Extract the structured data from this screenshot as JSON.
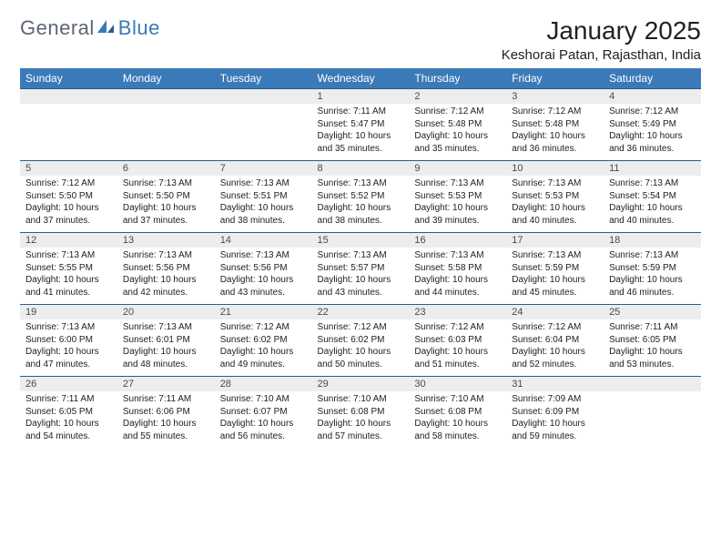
{
  "logo": {
    "word1": "General",
    "word2": "Blue"
  },
  "header": {
    "title": "January 2025",
    "location": "Keshorai Patan, Rajasthan, India"
  },
  "colors": {
    "brand_blue": "#3a7ab8",
    "row_divider": "#2a5d8a",
    "daynum_bg": "#eceded",
    "text": "#212121",
    "logo_gray": "#5c6670"
  },
  "fonts": {
    "title_size_pt": 21,
    "location_size_pt": 11,
    "header_cell_pt": 9,
    "daynum_pt": 8,
    "body_pt": 7.5
  },
  "calendar": {
    "day_headers": [
      "Sunday",
      "Monday",
      "Tuesday",
      "Wednesday",
      "Thursday",
      "Friday",
      "Saturday"
    ],
    "weeks": [
      [
        null,
        null,
        null,
        {
          "n": "1",
          "sunrise": "7:11 AM",
          "sunset": "5:47 PM",
          "daylight": "10 hours and 35 minutes."
        },
        {
          "n": "2",
          "sunrise": "7:12 AM",
          "sunset": "5:48 PM",
          "daylight": "10 hours and 35 minutes."
        },
        {
          "n": "3",
          "sunrise": "7:12 AM",
          "sunset": "5:48 PM",
          "daylight": "10 hours and 36 minutes."
        },
        {
          "n": "4",
          "sunrise": "7:12 AM",
          "sunset": "5:49 PM",
          "daylight": "10 hours and 36 minutes."
        }
      ],
      [
        {
          "n": "5",
          "sunrise": "7:12 AM",
          "sunset": "5:50 PM",
          "daylight": "10 hours and 37 minutes."
        },
        {
          "n": "6",
          "sunrise": "7:13 AM",
          "sunset": "5:50 PM",
          "daylight": "10 hours and 37 minutes."
        },
        {
          "n": "7",
          "sunrise": "7:13 AM",
          "sunset": "5:51 PM",
          "daylight": "10 hours and 38 minutes."
        },
        {
          "n": "8",
          "sunrise": "7:13 AM",
          "sunset": "5:52 PM",
          "daylight": "10 hours and 38 minutes."
        },
        {
          "n": "9",
          "sunrise": "7:13 AM",
          "sunset": "5:53 PM",
          "daylight": "10 hours and 39 minutes."
        },
        {
          "n": "10",
          "sunrise": "7:13 AM",
          "sunset": "5:53 PM",
          "daylight": "10 hours and 40 minutes."
        },
        {
          "n": "11",
          "sunrise": "7:13 AM",
          "sunset": "5:54 PM",
          "daylight": "10 hours and 40 minutes."
        }
      ],
      [
        {
          "n": "12",
          "sunrise": "7:13 AM",
          "sunset": "5:55 PM",
          "daylight": "10 hours and 41 minutes."
        },
        {
          "n": "13",
          "sunrise": "7:13 AM",
          "sunset": "5:56 PM",
          "daylight": "10 hours and 42 minutes."
        },
        {
          "n": "14",
          "sunrise": "7:13 AM",
          "sunset": "5:56 PM",
          "daylight": "10 hours and 43 minutes."
        },
        {
          "n": "15",
          "sunrise": "7:13 AM",
          "sunset": "5:57 PM",
          "daylight": "10 hours and 43 minutes."
        },
        {
          "n": "16",
          "sunrise": "7:13 AM",
          "sunset": "5:58 PM",
          "daylight": "10 hours and 44 minutes."
        },
        {
          "n": "17",
          "sunrise": "7:13 AM",
          "sunset": "5:59 PM",
          "daylight": "10 hours and 45 minutes."
        },
        {
          "n": "18",
          "sunrise": "7:13 AM",
          "sunset": "5:59 PM",
          "daylight": "10 hours and 46 minutes."
        }
      ],
      [
        {
          "n": "19",
          "sunrise": "7:13 AM",
          "sunset": "6:00 PM",
          "daylight": "10 hours and 47 minutes."
        },
        {
          "n": "20",
          "sunrise": "7:13 AM",
          "sunset": "6:01 PM",
          "daylight": "10 hours and 48 minutes."
        },
        {
          "n": "21",
          "sunrise": "7:12 AM",
          "sunset": "6:02 PM",
          "daylight": "10 hours and 49 minutes."
        },
        {
          "n": "22",
          "sunrise": "7:12 AM",
          "sunset": "6:02 PM",
          "daylight": "10 hours and 50 minutes."
        },
        {
          "n": "23",
          "sunrise": "7:12 AM",
          "sunset": "6:03 PM",
          "daylight": "10 hours and 51 minutes."
        },
        {
          "n": "24",
          "sunrise": "7:12 AM",
          "sunset": "6:04 PM",
          "daylight": "10 hours and 52 minutes."
        },
        {
          "n": "25",
          "sunrise": "7:11 AM",
          "sunset": "6:05 PM",
          "daylight": "10 hours and 53 minutes."
        }
      ],
      [
        {
          "n": "26",
          "sunrise": "7:11 AM",
          "sunset": "6:05 PM",
          "daylight": "10 hours and 54 minutes."
        },
        {
          "n": "27",
          "sunrise": "7:11 AM",
          "sunset": "6:06 PM",
          "daylight": "10 hours and 55 minutes."
        },
        {
          "n": "28",
          "sunrise": "7:10 AM",
          "sunset": "6:07 PM",
          "daylight": "10 hours and 56 minutes."
        },
        {
          "n": "29",
          "sunrise": "7:10 AM",
          "sunset": "6:08 PM",
          "daylight": "10 hours and 57 minutes."
        },
        {
          "n": "30",
          "sunrise": "7:10 AM",
          "sunset": "6:08 PM",
          "daylight": "10 hours and 58 minutes."
        },
        {
          "n": "31",
          "sunrise": "7:09 AM",
          "sunset": "6:09 PM",
          "daylight": "10 hours and 59 minutes."
        },
        null
      ]
    ],
    "labels": {
      "sunrise": "Sunrise:",
      "sunset": "Sunset:",
      "daylight": "Daylight:"
    }
  }
}
